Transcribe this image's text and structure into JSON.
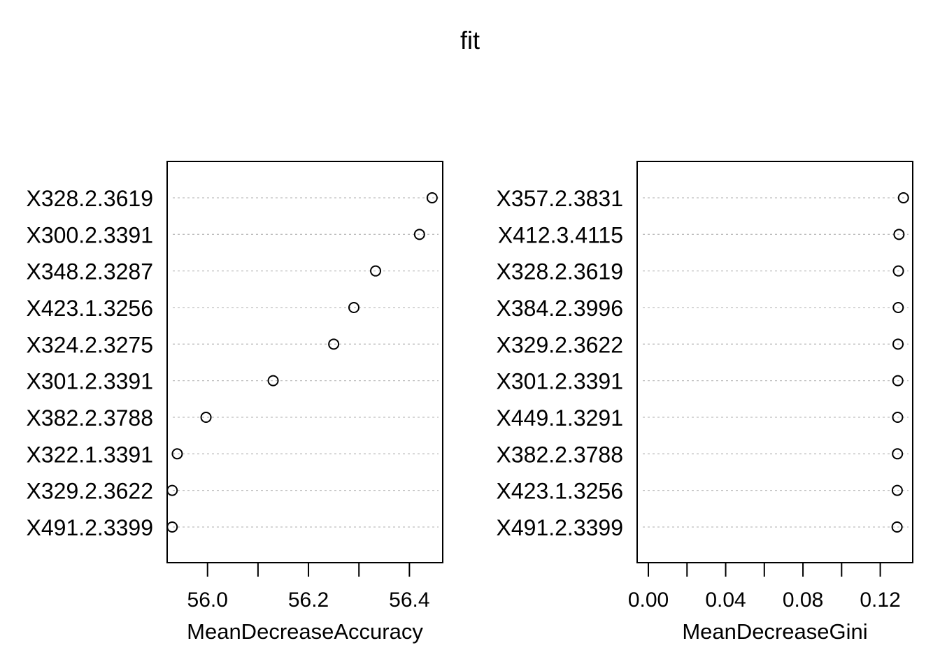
{
  "title": "fit",
  "chart_data": [
    {
      "type": "scatter",
      "xlabel": "MeanDecreaseAccuracy",
      "xlim": [
        55.92,
        56.466
      ],
      "xticks": [
        56.0,
        56.1,
        56.2,
        56.3,
        56.4
      ],
      "xtick_labels": [
        "56.0",
        "",
        "56.2",
        "",
        "56.4"
      ],
      "grid": "dotted horizontal",
      "categories": [
        "X328.2.3619",
        "X300.2.3391",
        "X348.2.3287",
        "X423.1.3256",
        "X324.2.3275",
        "X301.2.3391",
        "X382.2.3788",
        "X322.1.3391",
        "X329.2.3622",
        "X491.2.3399"
      ],
      "values": [
        56.445,
        56.42,
        56.333,
        56.29,
        56.25,
        56.13,
        55.997,
        55.94,
        55.93,
        55.93
      ]
    },
    {
      "type": "scatter",
      "xlabel": "MeanDecreaseGini",
      "xlim": [
        -0.0058,
        0.1368
      ],
      "xticks": [
        0.0,
        0.02,
        0.04,
        0.06,
        0.08,
        0.1,
        0.12
      ],
      "xtick_labels": [
        "0.00",
        "",
        "0.04",
        "",
        "0.08",
        "",
        "0.12"
      ],
      "grid": "dotted horizontal",
      "categories": [
        "X357.2.3831",
        "X412.3.4115",
        "X328.2.3619",
        "X384.2.3996",
        "X329.2.3622",
        "X301.2.3391",
        "X449.1.3291",
        "X382.2.3788",
        "X423.1.3256",
        "X491.2.3399"
      ],
      "values": [
        0.132,
        0.1297,
        0.1294,
        0.1293,
        0.1292,
        0.1291,
        0.129,
        0.1289,
        0.1288,
        0.1287
      ]
    }
  ]
}
